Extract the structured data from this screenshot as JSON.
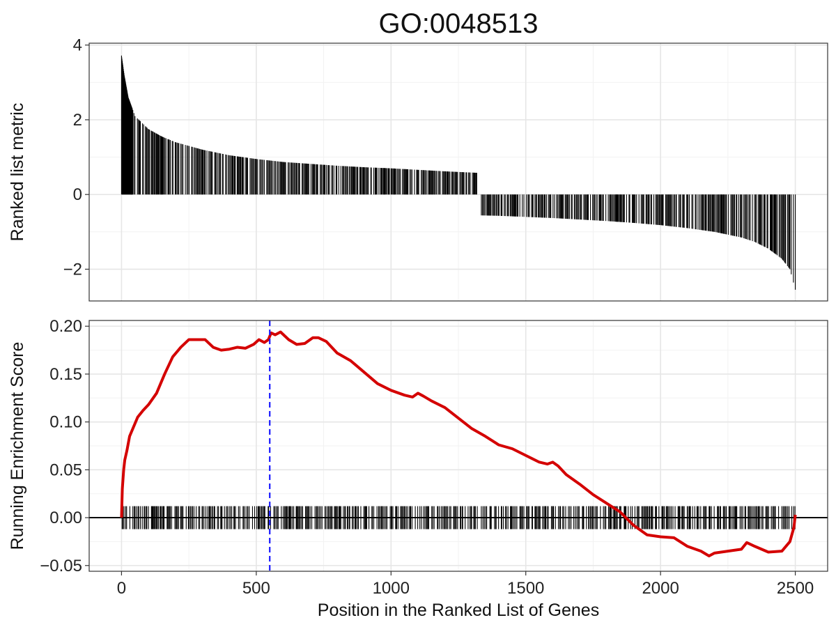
{
  "chart_data": {
    "type": "line",
    "title": "GO:0048513",
    "xlabel": "Position in the Ranked List of Genes",
    "xlim": [
      -120,
      2620
    ],
    "x_ticks": [
      0,
      500,
      1000,
      1500,
      2000,
      2500
    ],
    "x_tick_labels": [
      "0",
      "500",
      "1000",
      "1500",
      "2000",
      "2500"
    ],
    "grid": true,
    "panels": {
      "ranked_metric": {
        "type": "bar",
        "ylabel": "Ranked list metric",
        "ylim": [
          -2.85,
          4.05
        ],
        "y_ticks": [
          -2,
          0,
          2,
          4
        ],
        "y_tick_labels": [
          "−2",
          "0",
          "2",
          "4"
        ],
        "bar_color": "#000000",
        "n_genes": 2500,
        "sign_change_between": [
          1320,
          1335
        ],
        "profile_positive": [
          [
            0,
            3.72
          ],
          [
            10,
            3.2
          ],
          [
            25,
            2.6
          ],
          [
            50,
            2.1
          ],
          [
            100,
            1.75
          ],
          [
            150,
            1.55
          ],
          [
            200,
            1.4
          ],
          [
            300,
            1.2
          ],
          [
            400,
            1.05
          ],
          [
            500,
            0.95
          ],
          [
            600,
            0.87
          ],
          [
            700,
            0.82
          ],
          [
            800,
            0.77
          ],
          [
            900,
            0.73
          ],
          [
            1000,
            0.7
          ],
          [
            1100,
            0.66
          ],
          [
            1200,
            0.62
          ],
          [
            1320,
            0.58
          ]
        ],
        "profile_negative": [
          [
            1335,
            -0.56
          ],
          [
            1400,
            -0.57
          ],
          [
            1500,
            -0.6
          ],
          [
            1600,
            -0.63
          ],
          [
            1700,
            -0.67
          ],
          [
            1800,
            -0.71
          ],
          [
            1900,
            -0.76
          ],
          [
            2000,
            -0.82
          ],
          [
            2100,
            -0.9
          ],
          [
            2200,
            -1.0
          ],
          [
            2300,
            -1.15
          ],
          [
            2350,
            -1.27
          ],
          [
            2400,
            -1.45
          ],
          [
            2450,
            -1.72
          ],
          [
            2480,
            -2.0
          ],
          [
            2500,
            -2.55
          ]
        ]
      },
      "running_es": {
        "type": "line",
        "ylabel": "Running Enrichment Score",
        "ylim": [
          -0.056,
          0.206
        ],
        "y_ticks": [
          -0.05,
          0,
          0.05,
          0.1,
          0.15,
          0.2
        ],
        "y_tick_labels": [
          "−0.05",
          "0.00",
          "0.05",
          "0.10",
          "0.15",
          "0.20"
        ],
        "line_color": "#d40000",
        "hit_color": "#000000",
        "hit_band": [
          -0.012,
          0.012
        ],
        "zero_line": 0,
        "peak_position": 550,
        "peak_line_color": "#1a1aff",
        "series": [
          {
            "x": [
              0,
              3,
              8,
              12,
              20,
              30,
              45,
              60,
              80,
              100,
              130,
              160,
              190,
              220,
              250,
              280,
              310,
              340,
              370,
              400,
              430,
              460,
              490,
              510,
              530,
              545,
              555,
              570,
              590,
              620,
              650,
              680,
              710,
              730,
              760,
              800,
              850,
              900,
              950,
              1000,
              1050,
              1080,
              1100,
              1120,
              1150,
              1200,
              1250,
              1300,
              1350,
              1400,
              1450,
              1500,
              1550,
              1580,
              1600,
              1620,
              1650,
              1700,
              1750,
              1800,
              1850,
              1900,
              1950,
              2000,
              2050,
              2100,
              2150,
              2180,
              2200,
              2250,
              2300,
              2320,
              2350,
              2400,
              2450,
              2480,
              2495,
              2500
            ],
            "y": [
              0.0,
              0.03,
              0.05,
              0.06,
              0.07,
              0.085,
              0.095,
              0.105,
              0.112,
              0.118,
              0.13,
              0.15,
              0.168,
              0.178,
              0.186,
              0.186,
              0.186,
              0.178,
              0.175,
              0.176,
              0.178,
              0.177,
              0.181,
              0.186,
              0.183,
              0.186,
              0.193,
              0.191,
              0.194,
              0.186,
              0.181,
              0.182,
              0.188,
              0.188,
              0.184,
              0.172,
              0.164,
              0.152,
              0.14,
              0.133,
              0.128,
              0.126,
              0.13,
              0.127,
              0.122,
              0.115,
              0.104,
              0.093,
              0.085,
              0.076,
              0.072,
              0.065,
              0.058,
              0.056,
              0.058,
              0.054,
              0.045,
              0.035,
              0.024,
              0.015,
              0.006,
              -0.008,
              -0.018,
              -0.02,
              -0.021,
              -0.03,
              -0.035,
              -0.04,
              -0.037,
              -0.035,
              -0.033,
              -0.026,
              -0.03,
              -0.036,
              -0.035,
              -0.025,
              -0.01,
              0.003
            ]
          }
        ]
      }
    }
  }
}
